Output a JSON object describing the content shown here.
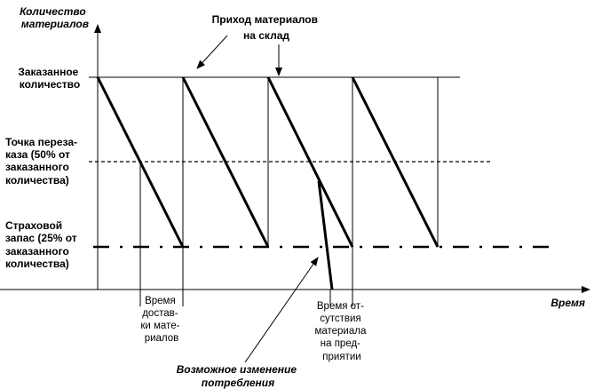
{
  "axes": {
    "y_label": [
      "Количество",
      "материалов"
    ],
    "x_label": "Время"
  },
  "levels": {
    "ordered": [
      "Заказанное",
      "количество"
    ],
    "reorder": [
      "Точка переза-",
      "каза (50% от",
      "заказанного",
      "количества)"
    ],
    "safety": [
      "Страховой",
      "запас (25% от",
      "заказанного",
      "количества)"
    ]
  },
  "annotations": {
    "arrival": [
      "Приход материалов",
      "на склад"
    ],
    "delivery_time": [
      "Время",
      "достав-",
      "ки мате-",
      "риалов"
    ],
    "stockout_time": [
      "Время от-",
      "сутствия",
      "материала",
      "на пред-",
      "приятии"
    ],
    "consumption_change": [
      "Возможное изменение",
      "потребления"
    ]
  }
}
